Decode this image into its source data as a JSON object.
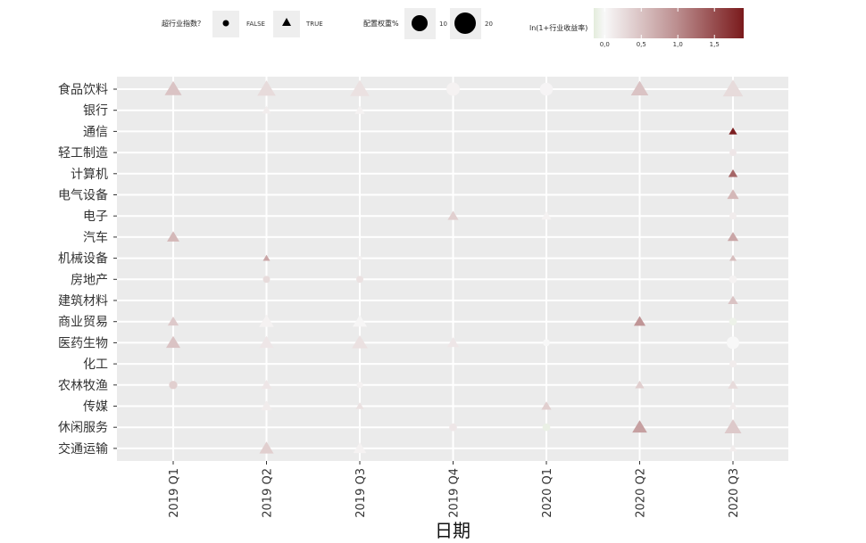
{
  "chart_data": {
    "type": "scatter",
    "xlabel": "日期",
    "ylabel": "",
    "x_categories": [
      "2019 Q1",
      "2019 Q2",
      "2019 Q3",
      "2019 Q4",
      "2020 Q1",
      "2020 Q2",
      "2020 Q3"
    ],
    "y_categories": [
      "食品饮料",
      "银行",
      "通信",
      "轻工制造",
      "计算机",
      "电气设备",
      "电子",
      "汽车",
      "机械设备",
      "房地产",
      "建筑材料",
      "商业贸易",
      "医药生物",
      "化工",
      "农林牧渔",
      "传媒",
      "休闲服务",
      "交通运输"
    ],
    "legend": {
      "shape_title": "超行业指数？",
      "shape_false": "FALSE",
      "shape_true": "TRUE",
      "size_title": "配置权重%",
      "size_10": "10",
      "size_20": "20",
      "color_title": "ln(1+行业收益率)",
      "color_ticks": [
        "0,0",
        "0,5",
        "1,0",
        "1,5"
      ],
      "color_tick_values": [
        0.0,
        0.5,
        1.0,
        1.5
      ],
      "color_range": [
        -0.15,
        1.9
      ],
      "color_low": "#e3ecdc",
      "color_mid": "#f8f8f8",
      "color_high": "#7a1a1c"
    },
    "grid": true,
    "points": [
      {
        "x": "2019 Q1",
        "y": "食品饮料",
        "beats_index": true,
        "weight": 17,
        "value": 0.45
      },
      {
        "x": "2019 Q1",
        "y": "汽车",
        "beats_index": true,
        "weight": 9,
        "value": 0.55
      },
      {
        "x": "2019 Q1",
        "y": "商业贸易",
        "beats_index": true,
        "weight": 7,
        "value": 0.4
      },
      {
        "x": "2019 Q1",
        "y": "医药生物",
        "beats_index": true,
        "weight": 12,
        "value": 0.45
      },
      {
        "x": "2019 Q1",
        "y": "农林牧渔",
        "beats_index": false,
        "weight": 7,
        "value": 0.35
      },
      {
        "x": "2019 Q2",
        "y": "食品饮料",
        "beats_index": true,
        "weight": 20,
        "value": 0.25
      },
      {
        "x": "2019 Q2",
        "y": "银行",
        "beats_index": true,
        "weight": 5,
        "value": 0.1
      },
      {
        "x": "2019 Q2",
        "y": "机械设备",
        "beats_index": true,
        "weight": 3,
        "value": 0.7
      },
      {
        "x": "2019 Q2",
        "y": "房地产",
        "beats_index": false,
        "weight": 5,
        "value": 0.25
      },
      {
        "x": "2019 Q2",
        "y": "商业贸易",
        "beats_index": true,
        "weight": 13,
        "value": 0.05
      },
      {
        "x": "2019 Q2",
        "y": "医药生物",
        "beats_index": true,
        "weight": 12,
        "value": 0.15
      },
      {
        "x": "2019 Q2",
        "y": "农林牧渔",
        "beats_index": true,
        "weight": 7,
        "value": 0.15
      },
      {
        "x": "2019 Q2",
        "y": "传媒",
        "beats_index": true,
        "weight": 8,
        "value": 0.1
      },
      {
        "x": "2019 Q2",
        "y": "交通运输",
        "beats_index": true,
        "weight": 12,
        "value": 0.35
      },
      {
        "x": "2019 Q3",
        "y": "食品饮料",
        "beats_index": true,
        "weight": 22,
        "value": 0.2
      },
      {
        "x": "2019 Q3",
        "y": "银行",
        "beats_index": true,
        "weight": 6,
        "value": 0.05
      },
      {
        "x": "2019 Q3",
        "y": "机械设备",
        "beats_index": false,
        "weight": 2,
        "value": 0.05
      },
      {
        "x": "2019 Q3",
        "y": "房地产",
        "beats_index": false,
        "weight": 5,
        "value": 0.2
      },
      {
        "x": "2019 Q3",
        "y": "商业贸易",
        "beats_index": true,
        "weight": 12,
        "value": 0.02
      },
      {
        "x": "2019 Q3",
        "y": "医药生物",
        "beats_index": true,
        "weight": 15,
        "value": 0.2
      },
      {
        "x": "2019 Q3",
        "y": "农林牧渔",
        "beats_index": false,
        "weight": 4,
        "value": 0.05
      },
      {
        "x": "2019 Q3",
        "y": "传媒",
        "beats_index": true,
        "weight": 4,
        "value": 0.2
      },
      {
        "x": "2019 Q3",
        "y": "交通运输",
        "beats_index": true,
        "weight": 10,
        "value": 0.05
      },
      {
        "x": "2019 Q4",
        "y": "食品饮料",
        "beats_index": false,
        "weight": 18,
        "value": 0.05
      },
      {
        "x": "2019 Q4",
        "y": "电子",
        "beats_index": true,
        "weight": 7,
        "value": 0.35
      },
      {
        "x": "2019 Q4",
        "y": "医药生物",
        "beats_index": true,
        "weight": 8,
        "value": 0.15
      },
      {
        "x": "2019 Q4",
        "y": "休闲服务",
        "beats_index": false,
        "weight": 6,
        "value": 0.15
      },
      {
        "x": "2020 Q1",
        "y": "食品饮料",
        "beats_index": false,
        "weight": 17,
        "value": 0.03
      },
      {
        "x": "2020 Q1",
        "y": "电子",
        "beats_index": true,
        "weight": 6,
        "value": 0.05
      },
      {
        "x": "2020 Q1",
        "y": "医药生物",
        "beats_index": false,
        "weight": 5,
        "value": 0.0
      },
      {
        "x": "2020 Q1",
        "y": "传媒",
        "beats_index": true,
        "weight": 6,
        "value": 0.35
      },
      {
        "x": "2020 Q1",
        "y": "休闲服务",
        "beats_index": false,
        "weight": 6,
        "value": -0.1
      },
      {
        "x": "2020 Q2",
        "y": "食品饮料",
        "beats_index": true,
        "weight": 18,
        "value": 0.45
      },
      {
        "x": "2020 Q2",
        "y": "商业贸易",
        "beats_index": true,
        "weight": 8,
        "value": 0.85
      },
      {
        "x": "2020 Q2",
        "y": "农林牧渔",
        "beats_index": true,
        "weight": 5,
        "value": 0.35
      },
      {
        "x": "2020 Q2",
        "y": "休闲服务",
        "beats_index": true,
        "weight": 13,
        "value": 0.75
      },
      {
        "x": "2020 Q3",
        "y": "食品饮料",
        "beats_index": true,
        "weight": 24,
        "value": 0.25
      },
      {
        "x": "2020 Q3",
        "y": "通信",
        "beats_index": true,
        "weight": 4,
        "value": 1.85
      },
      {
        "x": "2020 Q3",
        "y": "轻工制造",
        "beats_index": false,
        "weight": 5,
        "value": 0.15
      },
      {
        "x": "2020 Q3",
        "y": "计算机",
        "beats_index": true,
        "weight": 5,
        "value": 1.25
      },
      {
        "x": "2020 Q3",
        "y": "电气设备",
        "beats_index": true,
        "weight": 8,
        "value": 0.55
      },
      {
        "x": "2020 Q3",
        "y": "电子",
        "beats_index": false,
        "weight": 5,
        "value": 0.1
      },
      {
        "x": "2020 Q3",
        "y": "汽车",
        "beats_index": true,
        "weight": 7,
        "value": 0.7
      },
      {
        "x": "2020 Q3",
        "y": "机械设备",
        "beats_index": true,
        "weight": 3,
        "value": 0.5
      },
      {
        "x": "2020 Q3",
        "y": "房地产",
        "beats_index": false,
        "weight": 6,
        "value": 0.05
      },
      {
        "x": "2020 Q3",
        "y": "建筑材料",
        "beats_index": true,
        "weight": 6,
        "value": 0.45
      },
      {
        "x": "2020 Q3",
        "y": "商业贸易",
        "beats_index": false,
        "weight": 6,
        "value": -0.08
      },
      {
        "x": "2020 Q3",
        "y": "医药生物",
        "beats_index": false,
        "weight": 16,
        "value": 0.0
      },
      {
        "x": "2020 Q3",
        "y": "化工",
        "beats_index": false,
        "weight": 5,
        "value": 0.1
      },
      {
        "x": "2020 Q3",
        "y": "农林牧渔",
        "beats_index": true,
        "weight": 6,
        "value": 0.25
      },
      {
        "x": "2020 Q3",
        "y": "传媒",
        "beats_index": true,
        "weight": 5,
        "value": 0.1
      },
      {
        "x": "2020 Q3",
        "y": "休闲服务",
        "beats_index": true,
        "weight": 17,
        "value": 0.4
      },
      {
        "x": "2020 Q3",
        "y": "交通运输",
        "beats_index": true,
        "weight": 4,
        "value": 0.1
      }
    ]
  }
}
